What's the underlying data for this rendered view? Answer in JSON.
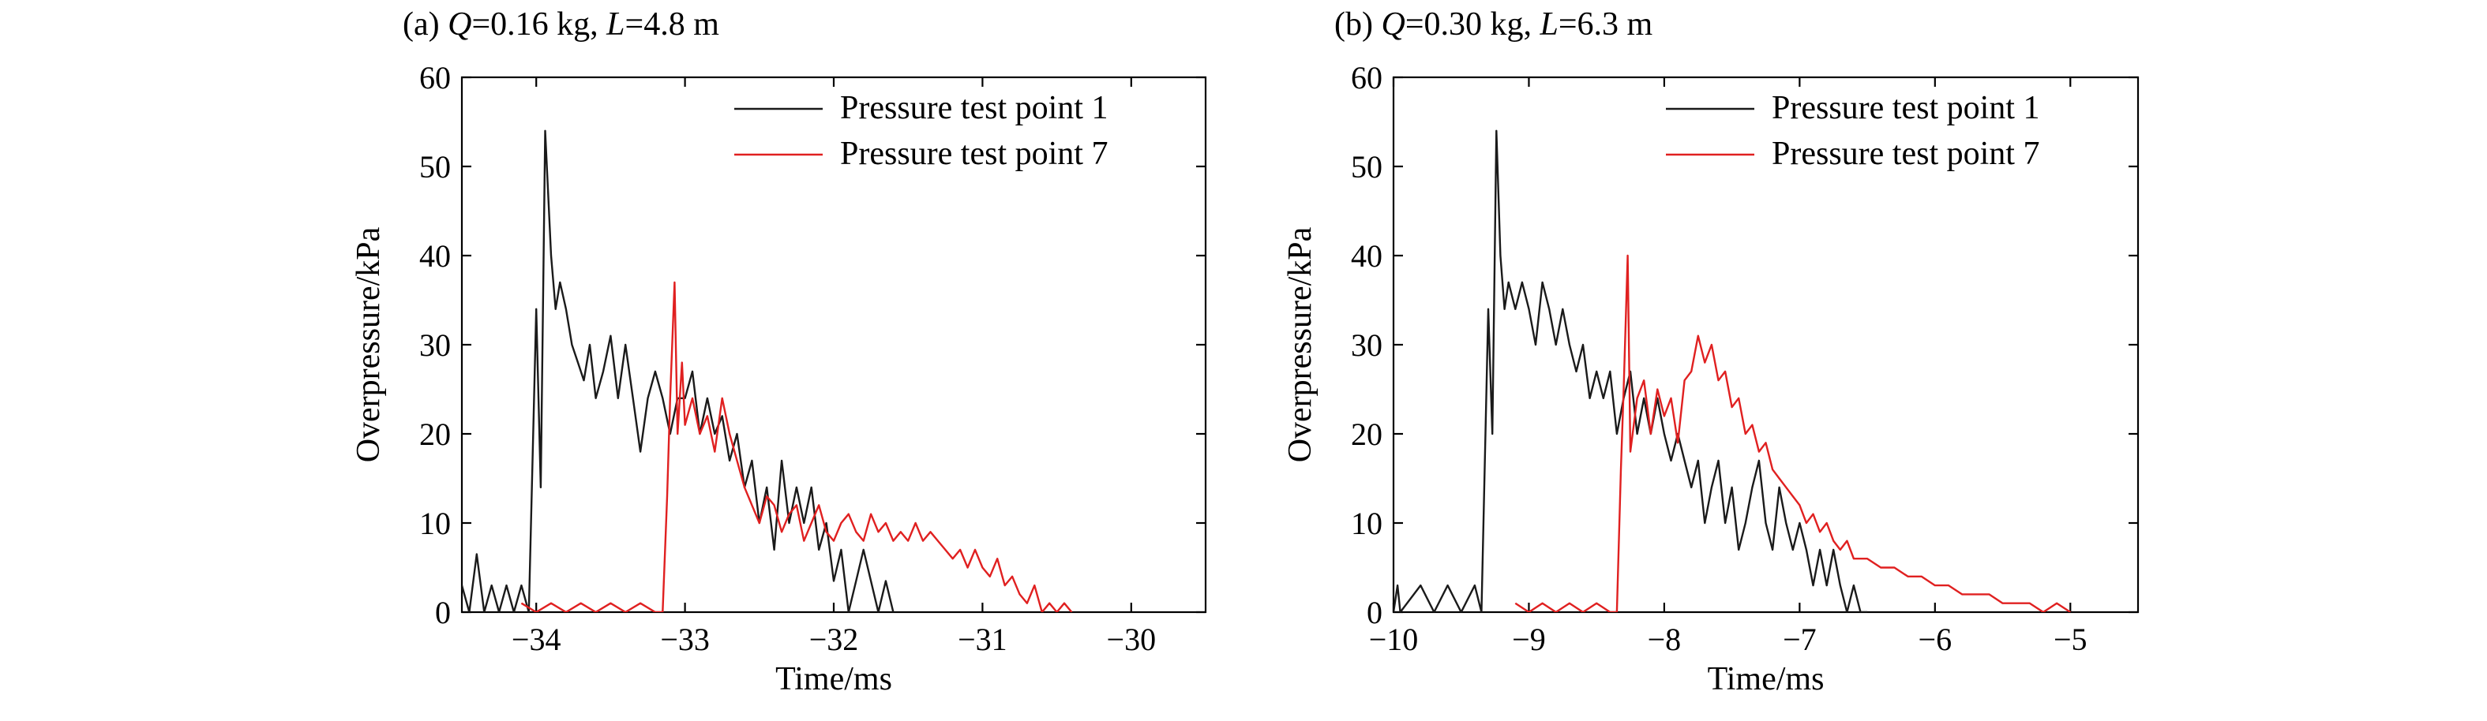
{
  "colors": {
    "series_1": "#1a1a1a",
    "series_7": "#e02020"
  },
  "chart_data": [
    {
      "type": "line",
      "title": {
        "prefix": "(a) ",
        "q_var": "Q",
        "q_value": "=0.16 kg, ",
        "l_var": "L",
        "l_value": "=4.8 m"
      },
      "xlabel": "Time/ms",
      "ylabel": "Overpressure/kPa",
      "xlim": [
        -34.5,
        -29.5
      ],
      "ylim": [
        0,
        60
      ],
      "xticks": [
        -34,
        -33,
        -32,
        -31,
        -30
      ],
      "xtick_labels": [
        "−34",
        "−33",
        "−32",
        "−31",
        "−30"
      ],
      "yticks": [
        0,
        10,
        20,
        30,
        40,
        50,
        60
      ],
      "ytick_labels": [
        "0",
        "10",
        "20",
        "30",
        "40",
        "50",
        "60"
      ],
      "legend_position": "top-right",
      "series": [
        {
          "name": "Pressure test point 1",
          "color_key": "series_1",
          "x": [
            -34.5,
            -34.45,
            -34.4,
            -34.35,
            -34.3,
            -34.25,
            -34.2,
            -34.15,
            -34.1,
            -34.05,
            -34.0,
            -33.97,
            -33.94,
            -33.9,
            -33.87,
            -33.84,
            -33.8,
            -33.76,
            -33.72,
            -33.68,
            -33.64,
            -33.6,
            -33.55,
            -33.5,
            -33.45,
            -33.4,
            -33.35,
            -33.3,
            -33.25,
            -33.2,
            -33.15,
            -33.1,
            -33.05,
            -33.0,
            -32.95,
            -32.9,
            -32.85,
            -32.8,
            -32.75,
            -32.7,
            -32.65,
            -32.6,
            -32.55,
            -32.5,
            -32.45,
            -32.4,
            -32.35,
            -32.3,
            -32.25,
            -32.2,
            -32.15,
            -32.1,
            -32.05,
            -32.0,
            -31.95,
            -31.9,
            -31.85,
            -31.8,
            -31.75,
            -31.7,
            -31.65,
            -31.6
          ],
          "y": [
            3,
            0,
            6.5,
            0,
            3,
            0,
            3,
            0,
            3,
            0,
            34,
            14,
            54,
            40,
            34,
            37,
            34,
            30,
            28,
            26,
            30,
            24,
            27,
            31,
            24,
            30,
            24,
            18,
            24,
            27,
            24,
            20,
            24,
            24,
            27,
            20,
            24,
            20,
            22,
            17,
            20,
            14,
            17,
            10,
            14,
            7,
            17,
            10,
            14,
            10,
            14,
            7,
            10,
            3.5,
            7,
            0,
            3.5,
            7,
            3.5,
            0,
            3.5,
            0
          ]
        },
        {
          "name": "Pressure test point 7",
          "color_key": "series_7",
          "x": [
            -34.1,
            -34.0,
            -33.9,
            -33.8,
            -33.7,
            -33.6,
            -33.5,
            -33.4,
            -33.3,
            -33.2,
            -33.15,
            -33.12,
            -33.1,
            -33.07,
            -33.05,
            -33.02,
            -33.0,
            -32.95,
            -32.9,
            -32.85,
            -32.8,
            -32.75,
            -32.7,
            -32.65,
            -32.6,
            -32.55,
            -32.5,
            -32.45,
            -32.4,
            -32.35,
            -32.3,
            -32.25,
            -32.2,
            -32.15,
            -32.1,
            -32.05,
            -32.0,
            -31.95,
            -31.9,
            -31.85,
            -31.8,
            -31.75,
            -31.7,
            -31.65,
            -31.6,
            -31.55,
            -31.5,
            -31.45,
            -31.4,
            -31.35,
            -31.3,
            -31.25,
            -31.2,
            -31.15,
            -31.1,
            -31.05,
            -31.0,
            -30.95,
            -30.9,
            -30.85,
            -30.8,
            -30.75,
            -30.7,
            -30.65,
            -30.6,
            -30.55,
            -30.5,
            -30.45,
            -30.4
          ],
          "y": [
            1,
            0,
            1,
            0,
            1,
            0,
            1,
            0,
            1,
            0,
            0,
            13,
            24,
            37,
            20,
            28,
            21,
            24,
            20,
            22,
            18,
            24,
            20,
            17,
            14,
            12,
            10,
            13,
            12,
            9,
            11,
            12,
            8,
            10,
            12,
            9,
            8,
            10,
            11,
            9,
            8,
            11,
            9,
            10,
            8,
            9,
            8,
            10,
            8,
            9,
            8,
            7,
            6,
            7,
            5,
            7,
            5,
            4,
            6,
            3,
            4,
            2,
            1,
            3,
            0,
            1,
            0,
            1,
            0
          ]
        }
      ]
    },
    {
      "type": "line",
      "title": {
        "prefix": "(b) ",
        "q_var": "Q",
        "q_value": "=0.30 kg, ",
        "l_var": "L",
        "l_value": "=6.3 m"
      },
      "xlabel": "Time/ms",
      "ylabel": "Overpressure/kPa",
      "xlim": [
        -10,
        -4.5
      ],
      "ylim": [
        0,
        60
      ],
      "xticks": [
        -10,
        -9,
        -8,
        -7,
        -6,
        -5
      ],
      "xtick_labels": [
        "−10",
        "−9",
        "−8",
        "−7",
        "−6",
        "−5"
      ],
      "yticks": [
        0,
        10,
        20,
        30,
        40,
        50,
        60
      ],
      "ytick_labels": [
        "0",
        "10",
        "20",
        "30",
        "40",
        "50",
        "60"
      ],
      "legend_position": "top-right",
      "series": [
        {
          "name": "Pressure test point 1",
          "color_key": "series_1",
          "x": [
            -10.0,
            -9.97,
            -9.95,
            -9.8,
            -9.7,
            -9.6,
            -9.5,
            -9.4,
            -9.35,
            -9.3,
            -9.27,
            -9.24,
            -9.21,
            -9.18,
            -9.15,
            -9.1,
            -9.05,
            -9.0,
            -8.95,
            -8.9,
            -8.85,
            -8.8,
            -8.75,
            -8.7,
            -8.65,
            -8.6,
            -8.55,
            -8.5,
            -8.45,
            -8.4,
            -8.35,
            -8.3,
            -8.25,
            -8.2,
            -8.15,
            -8.1,
            -8.05,
            -8.0,
            -7.95,
            -7.9,
            -7.85,
            -7.8,
            -7.75,
            -7.7,
            -7.65,
            -7.6,
            -7.55,
            -7.5,
            -7.45,
            -7.4,
            -7.35,
            -7.3,
            -7.25,
            -7.2,
            -7.15,
            -7.1,
            -7.05,
            -7.0,
            -6.95,
            -6.9,
            -6.85,
            -6.8,
            -6.75,
            -6.7,
            -6.65,
            -6.6,
            -6.55,
            -6.5
          ],
          "y": [
            0,
            3,
            0,
            3,
            0,
            3,
            0,
            3,
            0,
            34,
            20,
            54,
            40,
            34,
            37,
            34,
            37,
            34,
            30,
            37,
            34,
            30,
            34,
            30,
            27,
            30,
            24,
            27,
            24,
            27,
            20,
            24,
            27,
            20,
            24,
            20,
            24,
            20,
            17,
            20,
            17,
            14,
            17,
            10,
            14,
            17,
            10,
            14,
            7,
            10,
            14,
            17,
            10,
            7,
            14,
            10,
            7,
            10,
            7,
            3,
            7,
            3,
            7,
            3,
            0,
            3,
            0,
            0
          ]
        },
        {
          "name": "Pressure test point 7",
          "color_key": "series_7",
          "x": [
            -9.1,
            -9.0,
            -8.9,
            -8.8,
            -8.7,
            -8.6,
            -8.5,
            -8.4,
            -8.35,
            -8.32,
            -8.3,
            -8.27,
            -8.25,
            -8.2,
            -8.15,
            -8.1,
            -8.05,
            -8.0,
            -7.95,
            -7.9,
            -7.85,
            -7.8,
            -7.75,
            -7.7,
            -7.65,
            -7.6,
            -7.55,
            -7.5,
            -7.45,
            -7.4,
            -7.35,
            -7.3,
            -7.25,
            -7.2,
            -7.15,
            -7.1,
            -7.05,
            -7.0,
            -6.95,
            -6.9,
            -6.85,
            -6.8,
            -6.75,
            -6.7,
            -6.65,
            -6.6,
            -6.5,
            -6.4,
            -6.3,
            -6.2,
            -6.1,
            -6.0,
            -5.9,
            -5.8,
            -5.7,
            -5.6,
            -5.5,
            -5.4,
            -5.3,
            -5.2,
            -5.1,
            -5.0
          ],
          "y": [
            1,
            0,
            1,
            0,
            1,
            0,
            1,
            0,
            0,
            16,
            25,
            40,
            18,
            24,
            26,
            20,
            25,
            22,
            24,
            19,
            26,
            27,
            31,
            28,
            30,
            26,
            27,
            23,
            24,
            20,
            21,
            18,
            19,
            16,
            15,
            14,
            13,
            12,
            10,
            11,
            9,
            10,
            8,
            7,
            8,
            6,
            6,
            5,
            5,
            4,
            4,
            3,
            3,
            2,
            2,
            2,
            1,
            1,
            1,
            0,
            1,
            0
          ]
        }
      ]
    }
  ]
}
